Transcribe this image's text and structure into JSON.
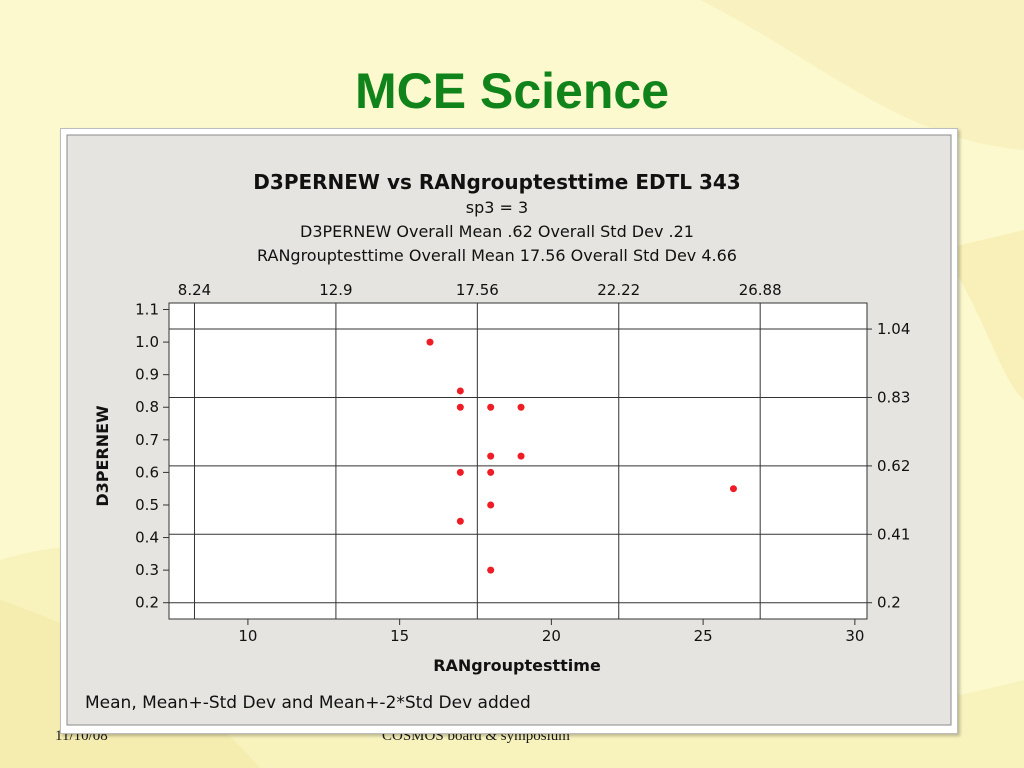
{
  "slide": {
    "title": "MCE Science",
    "footer_date": "11/10/08",
    "footer_event": "COSMOS board & symposium"
  },
  "chart_data": {
    "type": "scatter",
    "title": "D3PERNEW vs RANgrouptesttime EDTL 343",
    "subtitle_lines": [
      "sp3 = 3",
      "D3PERNEW   Overall Mean .62   Overall Std Dev .21",
      "RANgrouptesttime  Overall Mean 17.56   Overall Std Dev 4.66"
    ],
    "xlabel": "RANgrouptesttime",
    "ylabel": "D3PERNEW",
    "xlim": [
      7.4,
      30.4
    ],
    "ylim": [
      0.15,
      1.12
    ],
    "x_ticks": [
      10,
      15,
      20,
      25,
      30
    ],
    "x_tick_labels": [
      "10",
      "15",
      "20",
      "25",
      "30"
    ],
    "y_ticks": [
      0.2,
      0.3,
      0.4,
      0.5,
      0.6,
      0.7,
      0.8,
      0.9,
      1.0,
      1.1
    ],
    "y_tick_labels": [
      "0.2",
      "0.3",
      "0.4",
      "0.5",
      "0.6",
      "0.7",
      "0.8",
      "0.9",
      "1.0",
      "1.1"
    ],
    "top_ref_values": [
      8.24,
      12.9,
      17.56,
      22.22,
      26.88
    ],
    "top_ref_labels": [
      "8.24",
      "12.9",
      "17.56",
      "22.22",
      "26.88"
    ],
    "right_ref_values": [
      1.04,
      0.83,
      0.62,
      0.41,
      0.2
    ],
    "right_ref_labels": [
      "1.04",
      "0.83",
      "0.62",
      "0.41",
      "0.2"
    ],
    "points": [
      {
        "x": 16,
        "y": 1.0
      },
      {
        "x": 17,
        "y": 0.85
      },
      {
        "x": 17,
        "y": 0.8
      },
      {
        "x": 17,
        "y": 0.6
      },
      {
        "x": 17,
        "y": 0.45
      },
      {
        "x": 18,
        "y": 0.8
      },
      {
        "x": 18,
        "y": 0.65
      },
      {
        "x": 18,
        "y": 0.6
      },
      {
        "x": 18,
        "y": 0.5
      },
      {
        "x": 18,
        "y": 0.3
      },
      {
        "x": 19,
        "y": 0.8
      },
      {
        "x": 19,
        "y": 0.65
      },
      {
        "x": 26,
        "y": 0.55
      }
    ],
    "point_color": "#ee1c25",
    "grid": "reference lines at mean and ±1, ±2 std dev",
    "note": "Mean, Mean+-Std Dev and Mean+-2*Std Dev added"
  }
}
